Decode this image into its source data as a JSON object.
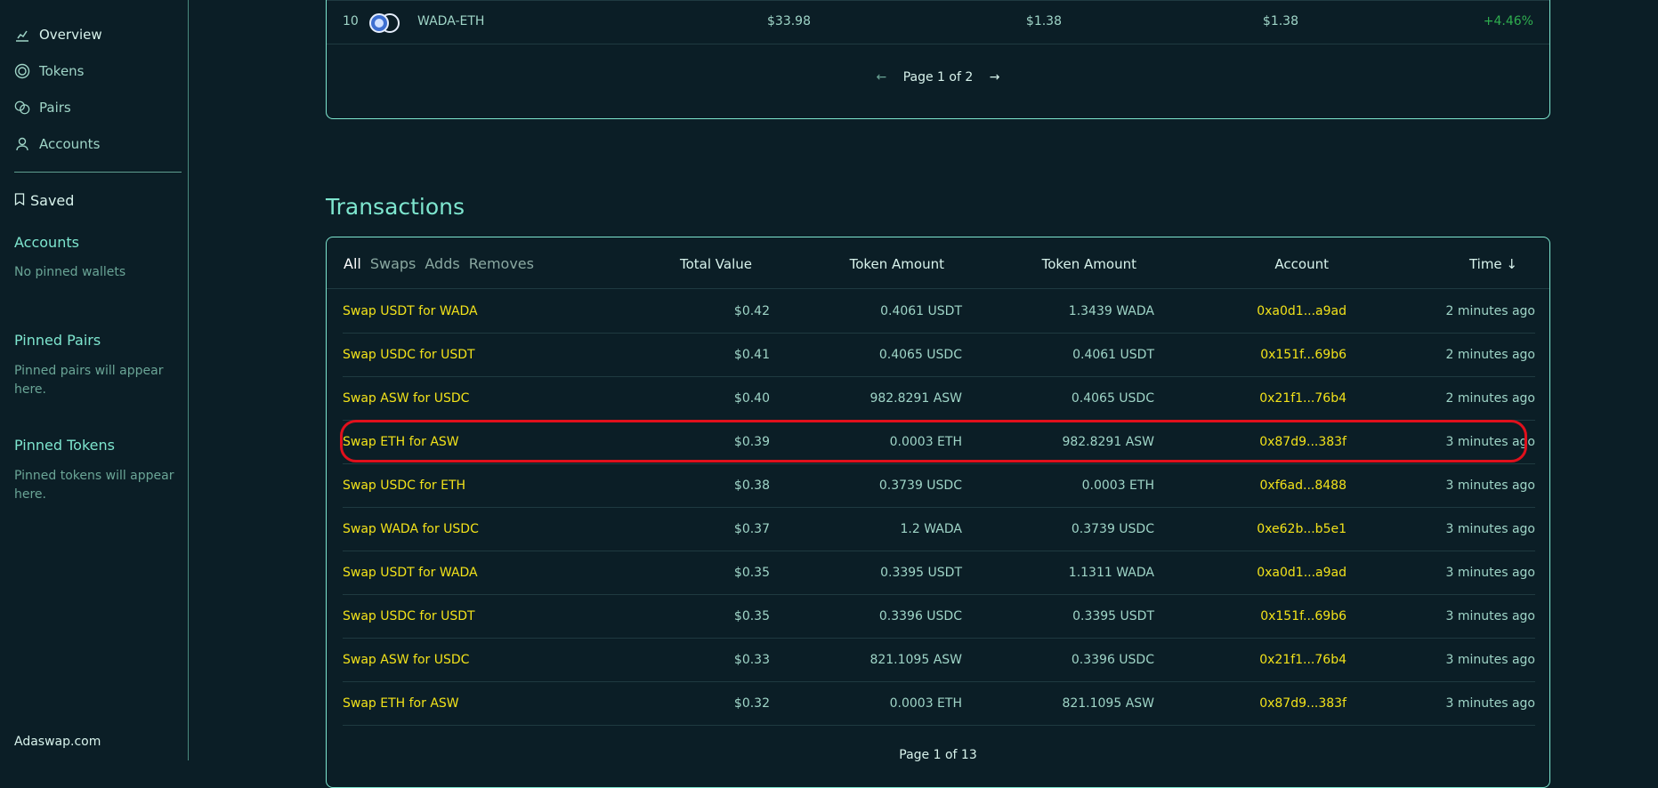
{
  "sidebar": {
    "nav": [
      {
        "label": "Overview",
        "icon": "chart-icon"
      },
      {
        "label": "Tokens",
        "icon": "token-icon"
      },
      {
        "label": "Pairs",
        "icon": "pairs-icon"
      },
      {
        "label": "Accounts",
        "icon": "user-icon"
      }
    ],
    "saved_label": "Saved",
    "accounts_heading": "Accounts",
    "accounts_text": "No pinned wallets",
    "pinned_pairs_heading": "Pinned Pairs",
    "pinned_pairs_text": "Pinned pairs will appear here.",
    "pinned_tokens_heading": "Pinned Tokens",
    "pinned_tokens_text": "Pinned tokens will appear here.",
    "brand": "Adaswap.com"
  },
  "top_table": {
    "row": {
      "index": "10",
      "pair": "WADA-ETH",
      "liquidity": "$33.98",
      "vol1": "$1.38",
      "vol2": "$1.38",
      "change": "+4.46%"
    },
    "pager": {
      "prev": "←",
      "text": "Page 1 of 2",
      "next": "→"
    }
  },
  "transactions": {
    "title": "Transactions",
    "filters": [
      "All",
      "Swaps",
      "Adds",
      "Removes"
    ],
    "columns": [
      "Total Value",
      "Token Amount",
      "Token Amount",
      "Account",
      "Time ↓"
    ],
    "rows": [
      {
        "type": "Swap USDT for WADA",
        "value": "$0.42",
        "amt1": "0.4061 USDT",
        "amt2": "1.3439 WADA",
        "account": "0xa0d1...a9ad",
        "time": "2 minutes ago"
      },
      {
        "type": "Swap USDC for USDT",
        "value": "$0.41",
        "amt1": "0.4065 USDC",
        "amt2": "0.4061 USDT",
        "account": "0x151f...69b6",
        "time": "2 minutes ago"
      },
      {
        "type": "Swap ASW for USDC",
        "value": "$0.40",
        "amt1": "982.8291 ASW",
        "amt2": "0.4065 USDC",
        "account": "0x21f1...76b4",
        "time": "2 minutes ago"
      },
      {
        "type": "Swap ETH for ASW",
        "value": "$0.39",
        "amt1": "0.0003 ETH",
        "amt2": "982.8291 ASW",
        "account": "0x87d9...383f",
        "time": "3 minutes ago"
      },
      {
        "type": "Swap USDC for ETH",
        "value": "$0.38",
        "amt1": "0.3739 USDC",
        "amt2": "0.0003 ETH",
        "account": "0xf6ad...8488",
        "time": "3 minutes ago"
      },
      {
        "type": "Swap WADA for USDC",
        "value": "$0.37",
        "amt1": "1.2 WADA",
        "amt2": "0.3739 USDC",
        "account": "0xe62b...b5e1",
        "time": "3 minutes ago"
      },
      {
        "type": "Swap USDT for WADA",
        "value": "$0.35",
        "amt1": "0.3395 USDT",
        "amt2": "1.1311 WADA",
        "account": "0xa0d1...a9ad",
        "time": "3 minutes ago"
      },
      {
        "type": "Swap USDC for USDT",
        "value": "$0.35",
        "amt1": "0.3396 USDC",
        "amt2": "0.3395 USDT",
        "account": "0x151f...69b6",
        "time": "3 minutes ago"
      },
      {
        "type": "Swap ASW for USDC",
        "value": "$0.33",
        "amt1": "821.1095 ASW",
        "amt2": "0.3396 USDC",
        "account": "0x21f1...76b4",
        "time": "3 minutes ago"
      },
      {
        "type": "Swap ETH for ASW",
        "value": "$0.32",
        "amt1": "0.0003 ETH",
        "amt2": "821.1095 ASW",
        "account": "0x87d9...383f",
        "time": "3 minutes ago"
      }
    ],
    "pager": {
      "text": "Page 1 of 13"
    }
  },
  "colors": {
    "accent": "#7ee6cf",
    "link": "#f2e21a",
    "highlight": "#e0101c",
    "bg": "#0b1e26",
    "positive": "#2fae4f"
  }
}
